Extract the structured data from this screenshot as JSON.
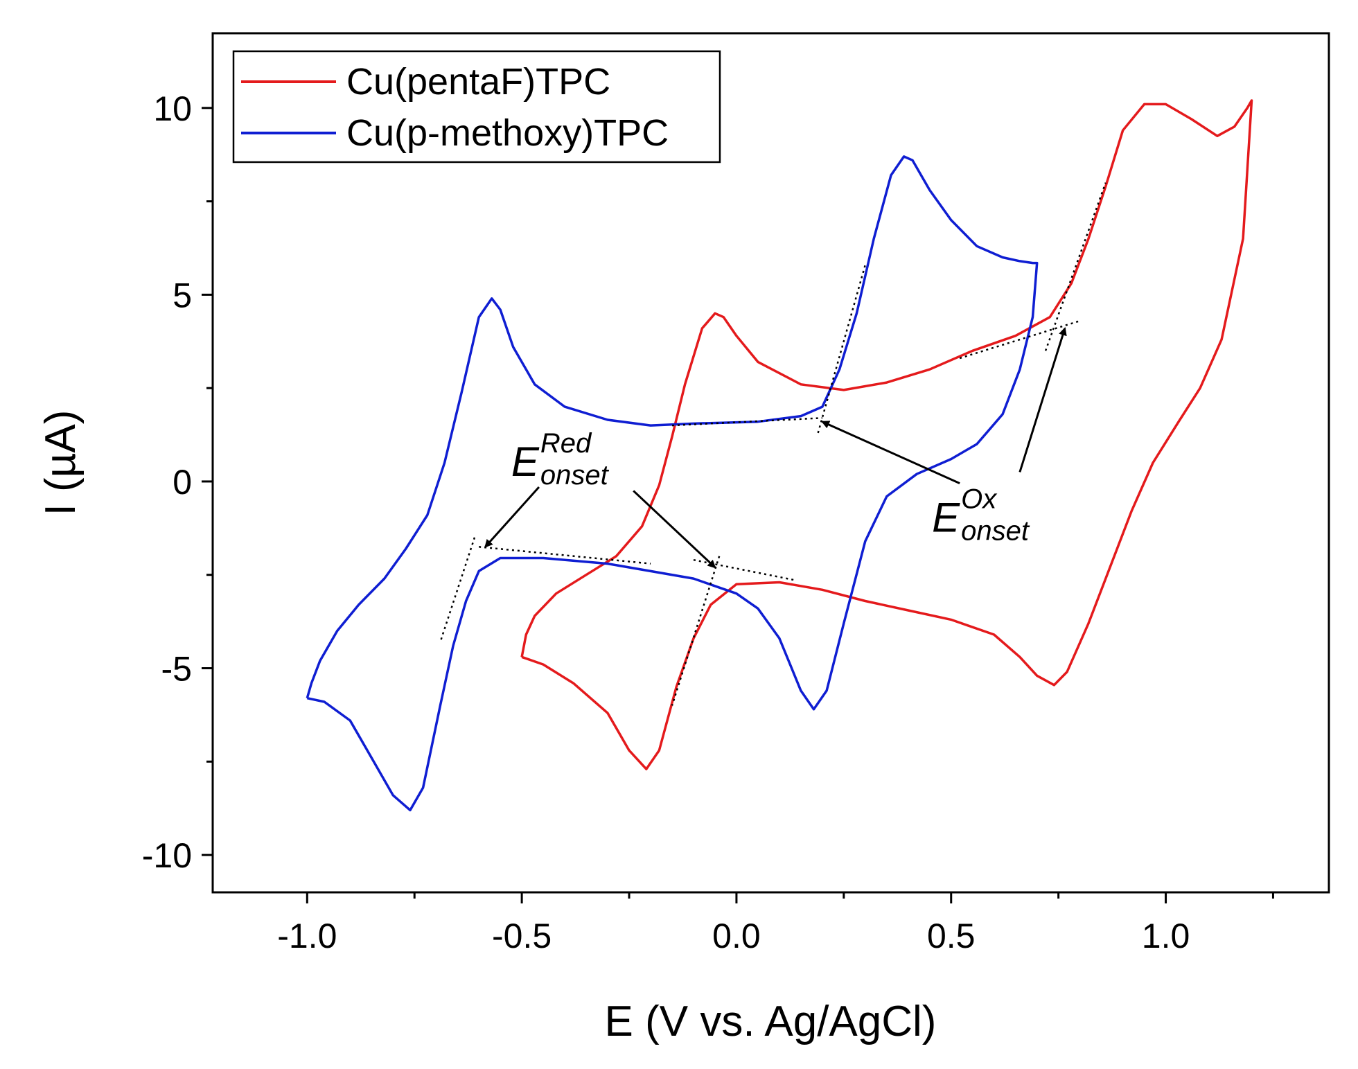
{
  "chart_data": {
    "type": "line",
    "xlabel": "E (V vs. Ag/AgCl)",
    "ylabel": "I (µA)",
    "xlim": [
      -1.22,
      1.38
    ],
    "ylim": [
      -11.0,
      12.0
    ],
    "x_ticks": [
      -1.0,
      -0.5,
      0.0,
      0.5,
      1.0
    ],
    "x_tick_labels": [
      "-1.0",
      "-0.5",
      "0.0",
      "0.5",
      "1.0"
    ],
    "y_ticks": [
      -10,
      -5,
      0,
      5,
      10
    ],
    "y_tick_labels": [
      "-10",
      "-5",
      "0",
      "5",
      "10"
    ],
    "legend_position": "top-left",
    "series": [
      {
        "name": "Cu(pentaF)TPC",
        "color": "#e41a1c",
        "points": [
          [
            -0.5,
            -4.7
          ],
          [
            -0.45,
            -4.9
          ],
          [
            -0.38,
            -5.4
          ],
          [
            -0.3,
            -6.2
          ],
          [
            -0.25,
            -7.2
          ],
          [
            -0.21,
            -7.7
          ],
          [
            -0.18,
            -7.2
          ],
          [
            -0.14,
            -5.5
          ],
          [
            -0.1,
            -4.2
          ],
          [
            -0.06,
            -3.3
          ],
          [
            0.0,
            -2.75
          ],
          [
            0.1,
            -2.7
          ],
          [
            0.2,
            -2.9
          ],
          [
            0.3,
            -3.2
          ],
          [
            0.4,
            -3.45
          ],
          [
            0.5,
            -3.7
          ],
          [
            0.6,
            -4.1
          ],
          [
            0.66,
            -4.7
          ],
          [
            0.7,
            -5.2
          ],
          [
            0.74,
            -5.45
          ],
          [
            0.77,
            -5.1
          ],
          [
            0.82,
            -3.8
          ],
          [
            0.87,
            -2.3
          ],
          [
            0.92,
            -0.8
          ],
          [
            0.97,
            0.5
          ],
          [
            1.03,
            1.6
          ],
          [
            1.08,
            2.5
          ],
          [
            1.13,
            3.8
          ],
          [
            1.18,
            6.5
          ],
          [
            1.2,
            10.2
          ],
          [
            1.19,
            10.0
          ],
          [
            1.16,
            9.5
          ],
          [
            1.12,
            9.25
          ],
          [
            1.06,
            9.7
          ],
          [
            1.0,
            10.1
          ],
          [
            0.95,
            10.1
          ],
          [
            0.9,
            9.4
          ],
          [
            0.86,
            7.9
          ],
          [
            0.82,
            6.5
          ],
          [
            0.78,
            5.3
          ],
          [
            0.73,
            4.4
          ],
          [
            0.65,
            3.9
          ],
          [
            0.55,
            3.5
          ],
          [
            0.45,
            3.0
          ],
          [
            0.35,
            2.65
          ],
          [
            0.25,
            2.45
          ],
          [
            0.15,
            2.6
          ],
          [
            0.05,
            3.2
          ],
          [
            0.0,
            3.9
          ],
          [
            -0.03,
            4.4
          ],
          [
            -0.05,
            4.5
          ],
          [
            -0.08,
            4.1
          ],
          [
            -0.12,
            2.6
          ],
          [
            -0.15,
            1.2
          ],
          [
            -0.18,
            -0.1
          ],
          [
            -0.22,
            -1.2
          ],
          [
            -0.28,
            -2.0
          ],
          [
            -0.35,
            -2.5
          ],
          [
            -0.42,
            -3.0
          ],
          [
            -0.47,
            -3.6
          ],
          [
            -0.49,
            -4.1
          ],
          [
            -0.5,
            -4.7
          ]
        ]
      },
      {
        "name": "Cu(p-methoxy)TPC",
        "color": "#0f1ed2",
        "points": [
          [
            -1.0,
            -5.8
          ],
          [
            -0.96,
            -5.9
          ],
          [
            -0.9,
            -6.4
          ],
          [
            -0.85,
            -7.4
          ],
          [
            -0.8,
            -8.4
          ],
          [
            -0.76,
            -8.8
          ],
          [
            -0.73,
            -8.2
          ],
          [
            -0.69,
            -6.0
          ],
          [
            -0.66,
            -4.4
          ],
          [
            -0.63,
            -3.2
          ],
          [
            -0.6,
            -2.4
          ],
          [
            -0.55,
            -2.05
          ],
          [
            -0.45,
            -2.05
          ],
          [
            -0.3,
            -2.2
          ],
          [
            -0.1,
            -2.6
          ],
          [
            0.0,
            -3.0
          ],
          [
            0.05,
            -3.4
          ],
          [
            0.1,
            -4.2
          ],
          [
            0.15,
            -5.6
          ],
          [
            0.18,
            -6.1
          ],
          [
            0.21,
            -5.6
          ],
          [
            0.25,
            -3.8
          ],
          [
            0.3,
            -1.6
          ],
          [
            0.35,
            -0.4
          ],
          [
            0.42,
            0.2
          ],
          [
            0.5,
            0.6
          ],
          [
            0.56,
            1.0
          ],
          [
            0.62,
            1.8
          ],
          [
            0.66,
            3.0
          ],
          [
            0.69,
            4.4
          ],
          [
            0.7,
            5.85
          ],
          [
            0.69,
            5.85
          ],
          [
            0.66,
            5.9
          ],
          [
            0.62,
            6.0
          ],
          [
            0.56,
            6.3
          ],
          [
            0.5,
            7.0
          ],
          [
            0.45,
            7.8
          ],
          [
            0.41,
            8.6
          ],
          [
            0.39,
            8.7
          ],
          [
            0.36,
            8.2
          ],
          [
            0.32,
            6.5
          ],
          [
            0.28,
            4.5
          ],
          [
            0.24,
            3.0
          ],
          [
            0.2,
            2.0
          ],
          [
            0.15,
            1.75
          ],
          [
            0.05,
            1.6
          ],
          [
            -0.1,
            1.55
          ],
          [
            -0.2,
            1.5
          ],
          [
            -0.3,
            1.65
          ],
          [
            -0.4,
            2.0
          ],
          [
            -0.47,
            2.6
          ],
          [
            -0.52,
            3.6
          ],
          [
            -0.55,
            4.6
          ],
          [
            -0.57,
            4.9
          ],
          [
            -0.6,
            4.4
          ],
          [
            -0.64,
            2.4
          ],
          [
            -0.68,
            0.5
          ],
          [
            -0.72,
            -0.9
          ],
          [
            -0.77,
            -1.8
          ],
          [
            -0.82,
            -2.6
          ],
          [
            -0.88,
            -3.3
          ],
          [
            -0.93,
            -4.0
          ],
          [
            -0.97,
            -4.8
          ],
          [
            -0.99,
            -5.4
          ],
          [
            -1.0,
            -5.8
          ]
        ]
      }
    ],
    "guides": [
      {
        "points": [
          [
            -0.15,
            1.5
          ],
          [
            0.2,
            1.7
          ]
        ]
      },
      {
        "points": [
          [
            0.19,
            1.3
          ],
          [
            0.3,
            5.8
          ]
        ]
      },
      {
        "points": [
          [
            0.52,
            3.3
          ],
          [
            0.8,
            4.3
          ]
        ]
      },
      {
        "points": [
          [
            0.72,
            3.5
          ],
          [
            0.86,
            8.0
          ]
        ]
      },
      {
        "points": [
          [
            -0.6,
            -1.75
          ],
          [
            -0.2,
            -2.2
          ]
        ]
      },
      {
        "points": [
          [
            -0.61,
            -1.5
          ],
          [
            -0.69,
            -4.3
          ]
        ]
      },
      {
        "points": [
          [
            -0.1,
            -2.1
          ],
          [
            0.14,
            -2.65
          ]
        ]
      },
      {
        "points": [
          [
            -0.04,
            -2.0
          ],
          [
            -0.15,
            -6.0
          ]
        ]
      }
    ],
    "annotations": [
      {
        "main": "E",
        "superscript": "Red",
        "subscript": "onset",
        "at": [
          -0.46,
          0.15
        ],
        "arrows": [
          {
            "from": [
              -0.46,
              -0.15
            ],
            "to": [
              -0.585,
              -1.75
            ]
          },
          {
            "from": [
              -0.24,
              -0.25
            ],
            "to": [
              -0.05,
              -2.3
            ]
          }
        ]
      },
      {
        "main": "E",
        "superscript": "Ox",
        "subscript": "onset",
        "at": [
          0.52,
          -1.35
        ],
        "arrows": [
          {
            "from": [
              0.52,
              -0.05
            ],
            "to": [
              0.2,
              1.6
            ]
          },
          {
            "from": [
              0.66,
              0.25
            ],
            "to": [
              0.765,
              4.1
            ]
          }
        ]
      }
    ]
  }
}
